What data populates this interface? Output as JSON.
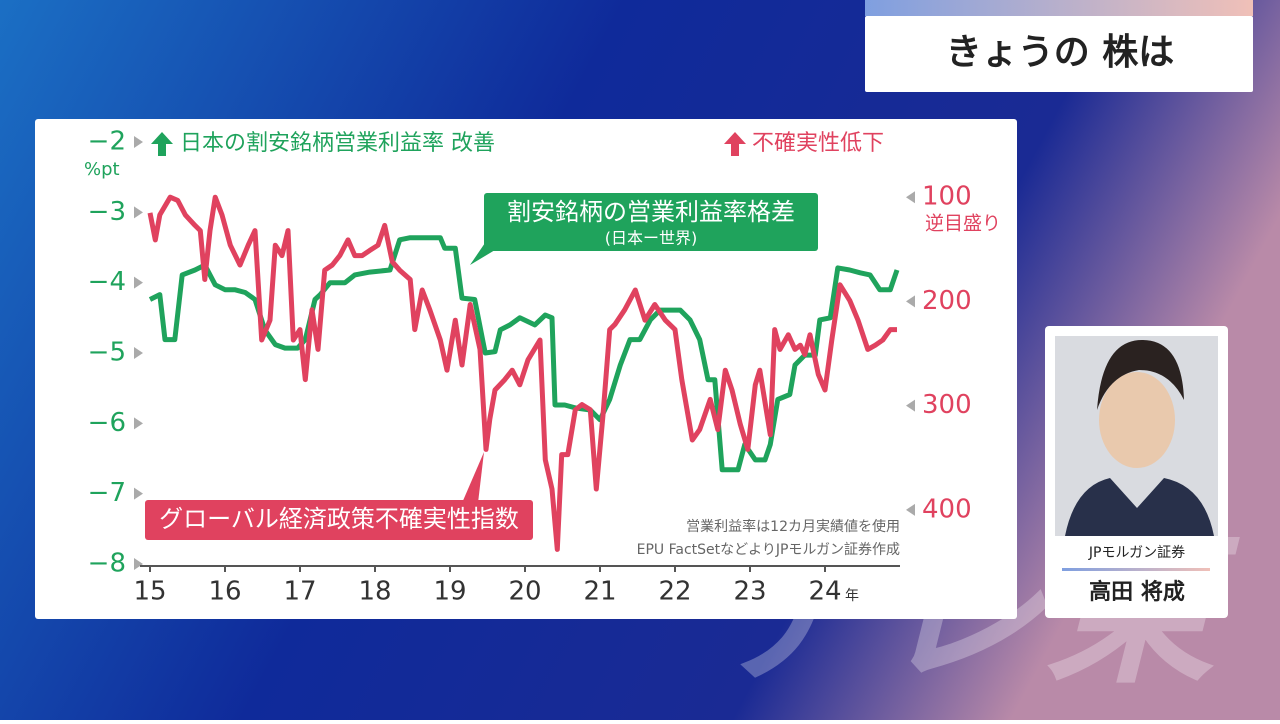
{
  "header": {
    "title": "きょうの 株は"
  },
  "chart_data": {
    "type": "line",
    "left_axis_unit": "%pt",
    "left_note": "日本の割安銘柄営業利益率 改善",
    "right_note": "不確実性低下",
    "right_axis_note": "逆目盛り",
    "x_unit": "年",
    "footnotes": [
      "営業利益率は12カ月実績値を使用",
      "EPU FactSetなどよりJPモルガン証券作成"
    ],
    "xlim": [
      15,
      25
    ],
    "xticks": [
      15,
      16,
      17,
      18,
      19,
      20,
      21,
      22,
      23,
      24
    ],
    "ylim": [
      -8,
      -2
    ],
    "yticks": [
      {
        "value": -2,
        "label": "−2"
      },
      {
        "value": -3,
        "label": "−3"
      },
      {
        "value": -4,
        "label": "−4"
      },
      {
        "value": -5,
        "label": "−5"
      },
      {
        "value": -6,
        "label": "−6"
      },
      {
        "value": -7,
        "label": "−7"
      },
      {
        "value": -8,
        "label": "−8"
      }
    ],
    "y2lim": [
      452,
      47
    ],
    "y2ticks": [
      100,
      200,
      300,
      400
    ],
    "series": [
      {
        "name": "割安銘柄の営業利益率格差",
        "subname": "(日本ー世界)",
        "color": "#1fa35c",
        "x": [
          15.0,
          15.13,
          15.2,
          15.33,
          15.43,
          15.6,
          15.73,
          15.87,
          16.0,
          16.13,
          16.27,
          16.4,
          16.53,
          16.67,
          16.8,
          16.97,
          17.07,
          17.2,
          17.27,
          17.4,
          17.6,
          17.73,
          17.93,
          18.2,
          18.33,
          18.47,
          18.87,
          18.93,
          19.07,
          19.16,
          19.33,
          19.47,
          19.6,
          19.67,
          19.8,
          19.93,
          20.13,
          20.27,
          20.36,
          20.4,
          20.53,
          20.67,
          20.87,
          21.0,
          21.13,
          21.27,
          21.4,
          21.53,
          21.67,
          21.8,
          22.07,
          22.2,
          22.33,
          22.44,
          22.53,
          22.63,
          22.84,
          22.93,
          23.07,
          23.2,
          23.27,
          23.37,
          23.53,
          23.6,
          23.73,
          23.87,
          23.93,
          24.07,
          24.17,
          24.33,
          24.47,
          24.6,
          24.73,
          24.87,
          24.96
        ],
        "values": [
          -4.24,
          -4.17,
          -4.81,
          -4.81,
          -3.89,
          -3.82,
          -3.75,
          -4.03,
          -4.1,
          -4.1,
          -4.14,
          -4.24,
          -4.67,
          -4.88,
          -4.93,
          -4.93,
          -4.81,
          -4.24,
          -4.17,
          -4.0,
          -4.0,
          -3.89,
          -3.85,
          -3.82,
          -3.39,
          -3.36,
          -3.36,
          -3.51,
          -3.51,
          -4.22,
          -4.24,
          -5.0,
          -4.98,
          -4.67,
          -4.6,
          -4.5,
          -4.6,
          -4.46,
          -4.5,
          -5.74,
          -5.74,
          -5.78,
          -5.81,
          -5.95,
          -5.66,
          -5.17,
          -4.81,
          -4.81,
          -4.53,
          -4.39,
          -4.39,
          -4.53,
          -4.81,
          -5.38,
          -5.38,
          -6.66,
          -6.66,
          -6.3,
          -6.52,
          -6.52,
          -6.3,
          -5.66,
          -5.59,
          -5.17,
          -5.03,
          -5.03,
          -4.53,
          -4.5,
          -3.79,
          -3.82,
          -3.86,
          -3.89,
          -4.1,
          -4.1,
          -3.82
        ]
      },
      {
        "name": "グローバル経済政策不確実性指数",
        "color": "#e0425f",
        "axis": "y2",
        "x": [
          15.0,
          15.07,
          15.13,
          15.27,
          15.37,
          15.47,
          15.6,
          15.67,
          15.73,
          15.8,
          15.87,
          15.96,
          16.07,
          16.2,
          16.31,
          16.4,
          16.49,
          16.6,
          16.67,
          16.76,
          16.84,
          16.91,
          17.0,
          17.07,
          17.16,
          17.24,
          17.33,
          17.43,
          17.53,
          17.64,
          17.73,
          17.83,
          17.93,
          18.04,
          18.13,
          18.23,
          18.33,
          18.47,
          18.53,
          18.63,
          18.73,
          18.87,
          18.96,
          19.07,
          19.16,
          19.27,
          19.4,
          19.48,
          19.53,
          19.6,
          19.73,
          19.83,
          19.93,
          20.04,
          20.2,
          20.27,
          20.36,
          20.43,
          20.49,
          20.57,
          20.67,
          20.76,
          20.87,
          20.95,
          21.04,
          21.13,
          21.2,
          21.33,
          21.47,
          21.6,
          21.73,
          21.87,
          22.0,
          22.09,
          22.23,
          22.33,
          22.47,
          22.57,
          22.67,
          22.76,
          22.87,
          22.97,
          23.07,
          23.13,
          23.27,
          23.33,
          23.4,
          23.51,
          23.6,
          23.67,
          23.73,
          23.8,
          23.91,
          24.0,
          24.09,
          24.2,
          24.33,
          24.44,
          24.57,
          24.67,
          24.77,
          24.87,
          24.96
        ],
        "values": [
          115,
          141,
          117,
          100,
          103,
          117,
          127,
          132,
          179,
          132,
          100,
          117,
          146,
          165,
          146,
          132,
          237,
          218,
          146,
          156,
          132,
          237,
          227,
          275,
          208,
          246,
          170,
          165,
          156,
          141,
          156,
          156,
          151,
          146,
          127,
          162,
          170,
          179,
          227,
          189,
          208,
          237,
          266,
          218,
          261,
          203,
          246,
          342,
          313,
          285,
          275,
          266,
          280,
          256,
          237,
          352,
          380,
          438,
          347,
          347,
          304,
          299,
          304,
          380,
          309,
          227,
          222,
          208,
          189,
          218,
          203,
          218,
          227,
          275,
          333,
          323,
          294,
          323,
          266,
          285,
          318,
          342,
          280,
          266,
          328,
          227,
          246,
          232,
          246,
          242,
          251,
          232,
          270,
          285,
          237,
          184,
          199,
          218,
          246,
          242,
          237,
          227,
          227
        ]
      }
    ]
  },
  "presenter": {
    "company": "JPモルガン証券",
    "name": "高田 将成"
  },
  "watermark": "テレ東"
}
